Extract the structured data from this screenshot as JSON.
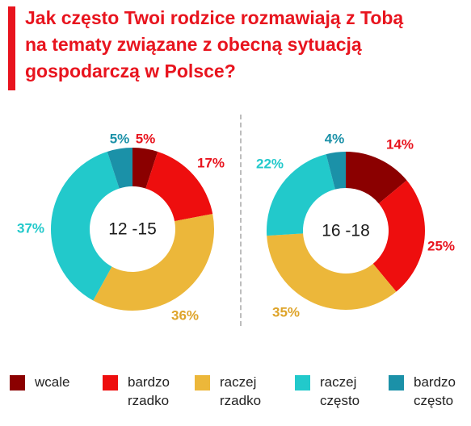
{
  "title_lines": [
    "Jak często Twoi rodzice rozmawiają z Tobą",
    "na tematy związane z obecną sytuacją",
    "gospodarczą w Polsce?"
  ],
  "colors": {
    "accent": "#e8141e",
    "wcale": "#8b0000",
    "bardzo_rzadko": "#ee0e0e",
    "raczej_rzadko": "#ecb73a",
    "raczej_czesto": "#22c9cb",
    "bardzo_czesto": "#1b91a8"
  },
  "chart_data": [
    {
      "type": "pie",
      "center_label": "12 -15",
      "slices": [
        {
          "name": "wcale",
          "value": 5,
          "label": "5%",
          "color": "#8b0000"
        },
        {
          "name": "bardzo rzadko",
          "value": 17,
          "label": "17%",
          "color": "#ee0e0e"
        },
        {
          "name": "raczej rzadko",
          "value": 36,
          "label": "36%",
          "color": "#ecb73a"
        },
        {
          "name": "raczej często",
          "value": 37,
          "label": "37%",
          "color": "#22c9cb"
        },
        {
          "name": "bardzo często",
          "value": 5,
          "label": "5%",
          "color": "#1b91a8"
        }
      ]
    },
    {
      "type": "pie",
      "center_label": "16 -18",
      "slices": [
        {
          "name": "wcale",
          "value": 14,
          "label": "14%",
          "color": "#8b0000"
        },
        {
          "name": "bardzo rzadko",
          "value": 25,
          "label": "25%",
          "color": "#ee0e0e"
        },
        {
          "name": "raczej rzadko",
          "value": 35,
          "label": "35%",
          "color": "#ecb73a"
        },
        {
          "name": "raczej często",
          "value": 22,
          "label": "22%",
          "color": "#22c9cb"
        },
        {
          "name": "bardzo często",
          "value": 4,
          "label": "4%",
          "color": "#1b91a8"
        }
      ]
    }
  ],
  "legend": [
    {
      "label": "wcale",
      "color": "#8b0000"
    },
    {
      "label": "bardzo rzadko",
      "color": "#ee0e0e"
    },
    {
      "label": "raczej rzadko",
      "color": "#ecb73a"
    },
    {
      "label": "raczej często",
      "color": "#22c9cb"
    },
    {
      "label": "bardzo często",
      "color": "#1b91a8"
    }
  ]
}
